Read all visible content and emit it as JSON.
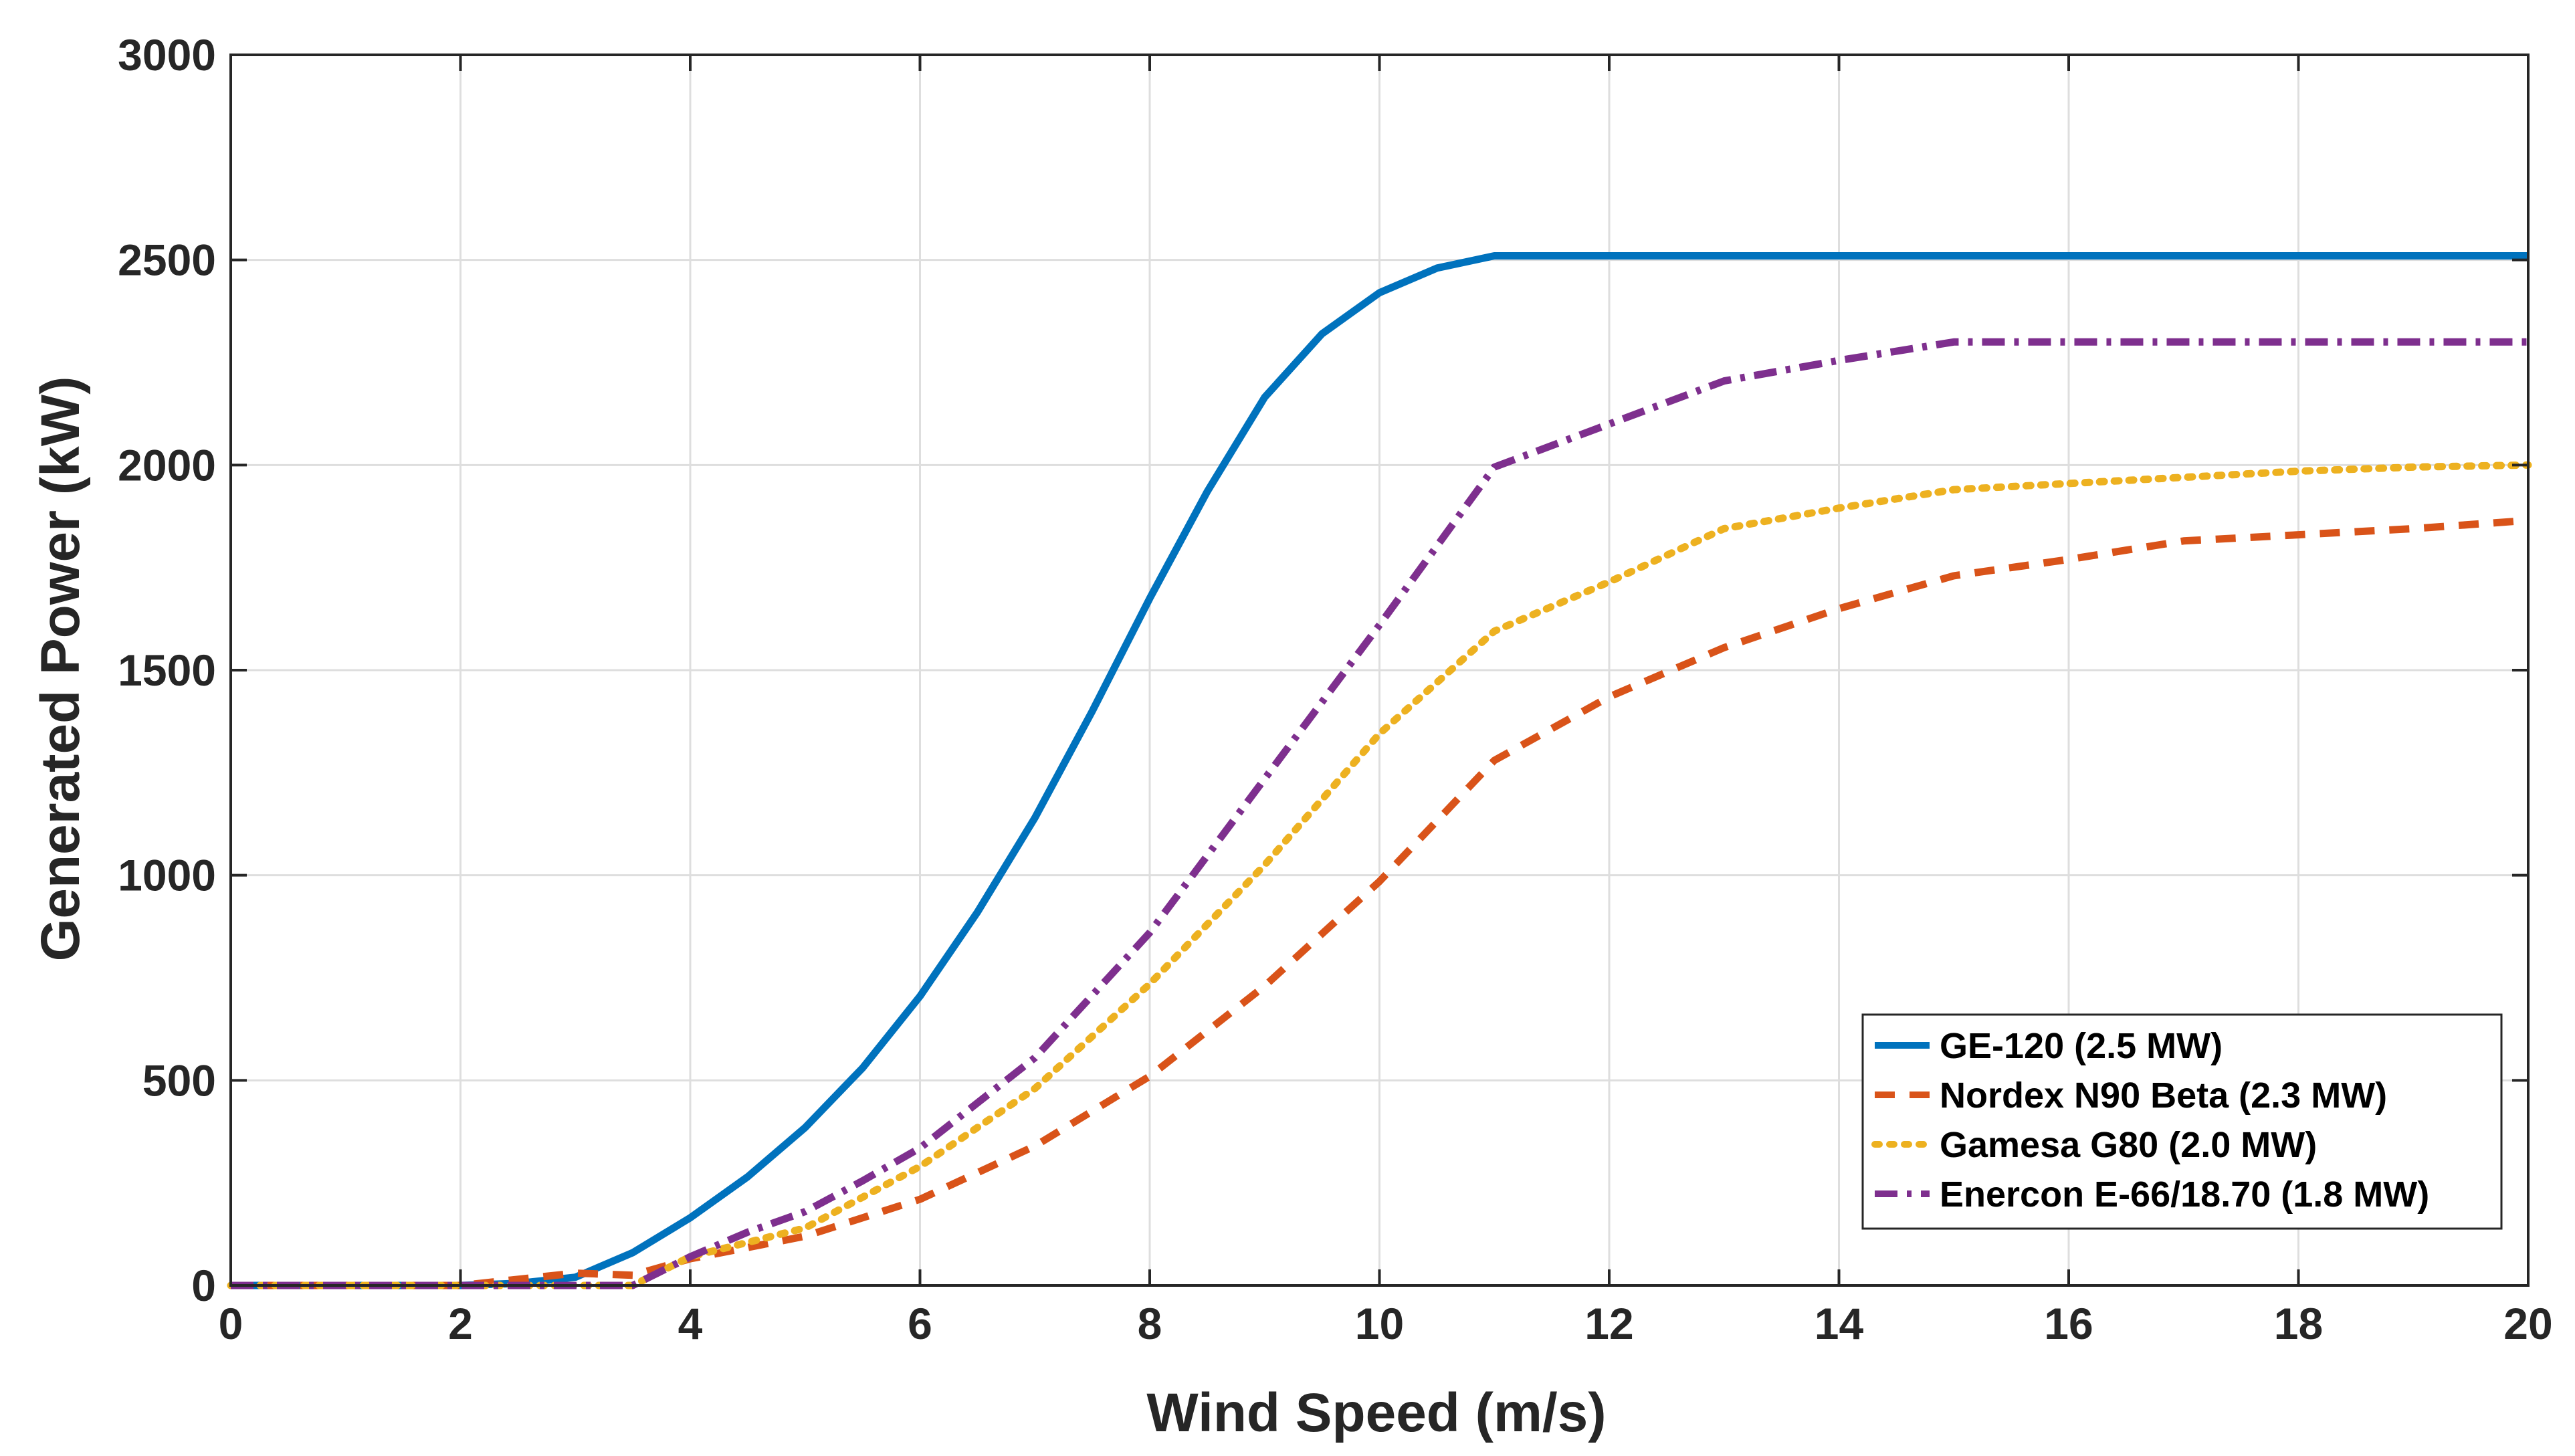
{
  "chart_data": {
    "type": "line",
    "title": "",
    "xlabel": "Wind Speed (m/s)",
    "ylabel": "Generated Power (kW)",
    "xlim": [
      0,
      20
    ],
    "ylim": [
      0,
      3000
    ],
    "xticks": [
      "0",
      "2",
      "4",
      "6",
      "8",
      "10",
      "12",
      "14",
      "16",
      "18",
      "20"
    ],
    "yticks": [
      "0",
      "500",
      "1000",
      "1500",
      "2000",
      "2500",
      "3000"
    ],
    "grid": true,
    "legend_position": "bottom-right",
    "series": [
      {
        "name": "GE-120 (2.5 MW)",
        "color": "#0072BD",
        "style": "solid",
        "points": [
          [
            0,
            0
          ],
          [
            2,
            0
          ],
          [
            2.5,
            5
          ],
          [
            3,
            20
          ],
          [
            3.5,
            80
          ],
          [
            4,
            165
          ],
          [
            4.5,
            265
          ],
          [
            5,
            385
          ],
          [
            5.5,
            530
          ],
          [
            6,
            705
          ],
          [
            6.5,
            910
          ],
          [
            7,
            1140
          ],
          [
            7.5,
            1400
          ],
          [
            8,
            1675
          ],
          [
            8.5,
            1935
          ],
          [
            9,
            2165
          ],
          [
            9.5,
            2320
          ],
          [
            10,
            2420
          ],
          [
            10.5,
            2480
          ],
          [
            11,
            2510
          ],
          [
            20,
            2510
          ]
        ]
      },
      {
        "name": "Nordex N90 Beta (2.3 MW)",
        "color": "#D95319",
        "style": "dashed",
        "points": [
          [
            0,
            0
          ],
          [
            2,
            0
          ],
          [
            3,
            30
          ],
          [
            3.5,
            25
          ],
          [
            4,
            65
          ],
          [
            5,
            120
          ],
          [
            6,
            210
          ],
          [
            7,
            340
          ],
          [
            8,
            510
          ],
          [
            9,
            730
          ],
          [
            10,
            985
          ],
          [
            11,
            1280
          ],
          [
            12,
            1435
          ],
          [
            13,
            1555
          ],
          [
            14,
            1650
          ],
          [
            15,
            1730
          ],
          [
            16,
            1770
          ],
          [
            17,
            1815
          ],
          [
            18,
            1830
          ],
          [
            19,
            1845
          ],
          [
            20,
            1865
          ]
        ]
      },
      {
        "name": "Gamesa G80 (2.0 MW)",
        "color": "#EDB120",
        "style": "dotted",
        "points": [
          [
            0,
            0
          ],
          [
            3,
            0
          ],
          [
            3.5,
            0
          ],
          [
            4,
            70
          ],
          [
            5,
            140
          ],
          [
            6,
            290
          ],
          [
            7,
            480
          ],
          [
            8,
            735
          ],
          [
            9,
            1025
          ],
          [
            10,
            1345
          ],
          [
            11,
            1595
          ],
          [
            12,
            1715
          ],
          [
            13,
            1845
          ],
          [
            14,
            1895
          ],
          [
            15,
            1940
          ],
          [
            16,
            1955
          ],
          [
            17,
            1970
          ],
          [
            18,
            1985
          ],
          [
            19,
            1995
          ],
          [
            20,
            2000
          ]
        ]
      },
      {
        "name": "Enercon E-66/18.70 (1.8 MW)",
        "color": "#7E2F8E",
        "style": "dashdot",
        "points": [
          [
            0,
            0
          ],
          [
            3,
            0
          ],
          [
            3.5,
            0
          ],
          [
            4,
            70
          ],
          [
            4.5,
            130
          ],
          [
            5,
            180
          ],
          [
            5.5,
            255
          ],
          [
            6,
            335
          ],
          [
            7,
            555
          ],
          [
            8,
            860
          ],
          [
            9,
            1235
          ],
          [
            10,
            1610
          ],
          [
            11,
            1995
          ],
          [
            12,
            2100
          ],
          [
            13,
            2205
          ],
          [
            14,
            2255
          ],
          [
            15,
            2300
          ],
          [
            20,
            2300
          ]
        ]
      }
    ]
  }
}
